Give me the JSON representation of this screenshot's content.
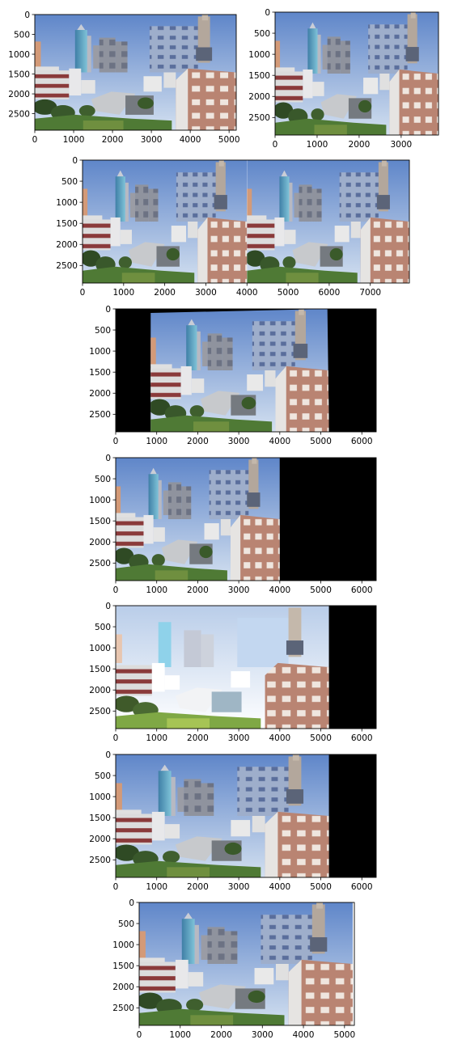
{
  "figure": {
    "description_note": "",
    "background": "#ffffff"
  },
  "chart_data": [
    {
      "id": "panel-1",
      "type": "image",
      "title": "",
      "x_ticks": [
        0,
        1000,
        2000,
        3000,
        4000,
        5000
      ],
      "y_ticks": [
        0,
        500,
        1000,
        1500,
        2000,
        2500
      ],
      "x_extent": [
        0,
        5184
      ],
      "y_extent": [
        0,
        2916
      ],
      "content": [
        {
          "kind": "photo",
          "x0": 0,
          "x1": 5184,
          "y_top": 0,
          "y_bottom": 2916
        }
      ]
    },
    {
      "id": "panel-2",
      "type": "image",
      "title": "",
      "x_ticks": [
        0,
        1000,
        2000,
        3000
      ],
      "y_ticks": [
        0,
        500,
        1000,
        1500,
        2000,
        2500
      ],
      "x_extent": [
        0,
        3888
      ],
      "y_extent": [
        0,
        2916
      ],
      "content": [
        {
          "kind": "photo",
          "x0": 0,
          "x1": 3888,
          "y_top": 0,
          "y_bottom": 2916
        }
      ]
    },
    {
      "id": "panel-3",
      "type": "image",
      "title": "",
      "x_ticks": [
        0,
        1000,
        2000,
        3000,
        4000,
        5000,
        6000,
        7000
      ],
      "y_ticks": [
        0,
        500,
        1000,
        1500,
        2000,
        2500
      ],
      "x_extent": [
        0,
        7950
      ],
      "y_extent": [
        0,
        2916
      ],
      "content": [
        {
          "kind": "photo",
          "x0": 0,
          "x1": 4000,
          "y_top": 0,
          "y_bottom": 2916
        },
        {
          "kind": "photo",
          "x0": 4000,
          "x1": 7950,
          "y_top": 0,
          "y_bottom": 2916
        }
      ]
    },
    {
      "id": "panel-4",
      "type": "image",
      "title": "",
      "x_ticks": [
        0,
        1000,
        2000,
        3000,
        4000,
        5000,
        6000
      ],
      "y_ticks": [
        0,
        500,
        1000,
        1500,
        2000,
        2500
      ],
      "x_extent": [
        0,
        6350
      ],
      "y_extent": [
        0,
        2916
      ],
      "content": [
        {
          "kind": "black",
          "x0": 0,
          "x1": 6350,
          "y_top": 0,
          "y_bottom": 2916
        },
        {
          "kind": "warped-photo",
          "x0": 850,
          "x1": 5200,
          "y_top": 0,
          "y_bottom": 2916
        }
      ]
    },
    {
      "id": "panel-5",
      "type": "image",
      "title": "",
      "x_ticks": [
        0,
        1000,
        2000,
        3000,
        4000,
        5000,
        6000
      ],
      "y_ticks": [
        0,
        500,
        1000,
        1500,
        2000,
        2500
      ],
      "x_extent": [
        0,
        6350
      ],
      "y_extent": [
        0,
        2916
      ],
      "content": [
        {
          "kind": "black",
          "x0": 0,
          "x1": 6350,
          "y_top": 0,
          "y_bottom": 2916
        },
        {
          "kind": "photo",
          "x0": 0,
          "x1": 4000,
          "y_top": 0,
          "y_bottom": 2916
        }
      ]
    },
    {
      "id": "panel-6",
      "type": "image",
      "title": "",
      "x_ticks": [
        0,
        1000,
        2000,
        3000,
        4000,
        5000,
        6000
      ],
      "y_ticks": [
        0,
        500,
        1000,
        1500,
        2000,
        2500
      ],
      "x_extent": [
        0,
        6350
      ],
      "y_extent": [
        0,
        2916
      ],
      "content": [
        {
          "kind": "black",
          "x0": 0,
          "x1": 6350,
          "y_top": 0,
          "y_bottom": 2916
        },
        {
          "kind": "overexposed-photo",
          "x0": 0,
          "x1": 5200,
          "y_top": 0,
          "y_bottom": 2916
        }
      ]
    },
    {
      "id": "panel-7",
      "type": "image",
      "title": "",
      "x_ticks": [
        0,
        1000,
        2000,
        3000,
        4000,
        5000,
        6000
      ],
      "y_ticks": [
        0,
        500,
        1000,
        1500,
        2000,
        2500
      ],
      "x_extent": [
        0,
        6350
      ],
      "y_extent": [
        0,
        2916
      ],
      "content": [
        {
          "kind": "black",
          "x0": 0,
          "x1": 6350,
          "y_top": 0,
          "y_bottom": 2916
        },
        {
          "kind": "photo",
          "x0": 0,
          "x1": 5200,
          "y_top": 0,
          "y_bottom": 2916
        }
      ]
    },
    {
      "id": "panel-8",
      "type": "image",
      "title": "",
      "x_ticks": [
        0,
        1000,
        2000,
        3000,
        4000,
        5000
      ],
      "y_ticks": [
        0,
        500,
        1000,
        1500,
        2000,
        2500
      ],
      "x_extent": [
        0,
        5240
      ],
      "y_extent": [
        0,
        2916
      ],
      "content": [
        {
          "kind": "photo",
          "x0": 0,
          "x1": 5200,
          "y_top": 0,
          "y_bottom": 2916
        }
      ]
    }
  ],
  "colors": {
    "sky_top": "#5f86c9",
    "sky_bottom": "#c9d9ee",
    "tower_glass": "#4a8fb0",
    "building_grey": "#8d8f99",
    "building_light": "#dcdcdc",
    "brick": "#b98472",
    "ground_green": "#4f7a35",
    "trees": "#2f4a24",
    "courtyard": "#bfc1c4",
    "black": "#000000",
    "overexposed": "#f4f7fb"
  }
}
